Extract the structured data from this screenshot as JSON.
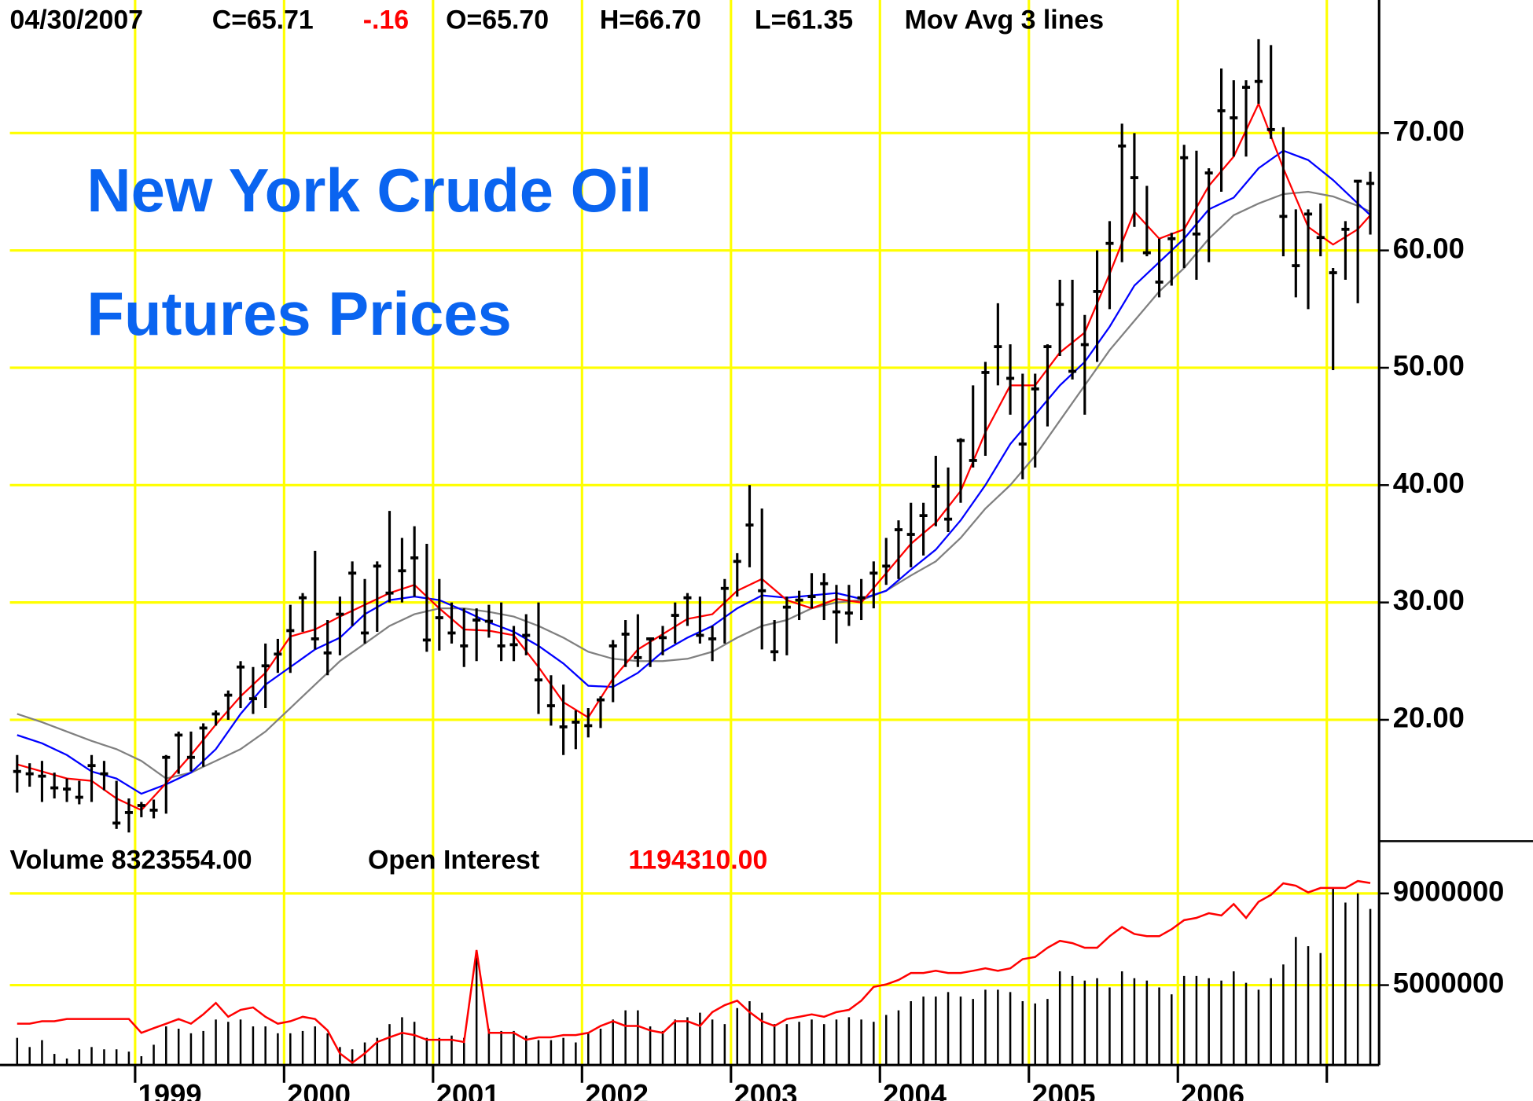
{
  "chart_data": {
    "type": "ohlc",
    "header": [
      {
        "text": "04/30/2007",
        "color": "#000000"
      },
      {
        "text": "C=65.71",
        "color": "#000000"
      },
      {
        "text": "-.16",
        "color": "#ff0000"
      },
      {
        "text": "O=65.70",
        "color": "#000000"
      },
      {
        "text": "H=66.70",
        "color": "#000000"
      },
      {
        "text": "L=61.35",
        "color": "#000000"
      },
      {
        "text": "Mov Avg 3 lines",
        "color": "#000000"
      }
    ],
    "title": "New York Crude Oil",
    "subtitle": "Futures Prices",
    "title_color": "#0a64f0",
    "color": "#000000",
    "x": [
      1998.208,
      1998.292,
      1998.375,
      1998.458,
      1998.542,
      1998.625,
      1998.708,
      1998.792,
      1998.875,
      1998.958,
      1999.042,
      1999.125,
      1999.208,
      1999.292,
      1999.375,
      1999.458,
      1999.542,
      1999.625,
      1999.708,
      1999.792,
      1999.875,
      1999.958,
      2000.042,
      2000.125,
      2000.208,
      2000.292,
      2000.375,
      2000.458,
      2000.542,
      2000.625,
      2000.708,
      2000.792,
      2000.875,
      2000.958,
      2001.042,
      2001.125,
      2001.208,
      2001.292,
      2001.375,
      2001.458,
      2001.542,
      2001.625,
      2001.708,
      2001.792,
      2001.875,
      2001.958,
      2002.042,
      2002.125,
      2002.208,
      2002.292,
      2002.375,
      2002.458,
      2002.542,
      2002.625,
      2002.708,
      2002.792,
      2002.875,
      2002.958,
      2003.042,
      2003.125,
      2003.208,
      2003.292,
      2003.375,
      2003.458,
      2003.542,
      2003.625,
      2003.708,
      2003.792,
      2003.875,
      2003.958,
      2004.042,
      2004.125,
      2004.208,
      2004.292,
      2004.375,
      2004.458,
      2004.542,
      2004.625,
      2004.708,
      2004.792,
      2004.875,
      2004.958,
      2005.042,
      2005.125,
      2005.208,
      2005.292,
      2005.375,
      2005.458,
      2005.542,
      2005.625,
      2005.708,
      2005.792,
      2005.875,
      2005.958,
      2006.042,
      2006.125,
      2006.208,
      2006.292,
      2006.375,
      2006.458,
      2006.542,
      2006.625,
      2006.708,
      2006.792,
      2006.875,
      2006.958,
      2007.042,
      2007.125,
      2007.208,
      2007.292
    ],
    "highs": [
      17.0,
      16.3,
      16.5,
      15.5,
      15.0,
      14.8,
      17.0,
      16.5,
      14.8,
      13.3,
      13.0,
      13.2,
      17.0,
      19.0,
      19.0,
      19.7,
      20.8,
      22.5,
      25.0,
      24.5,
      26.5,
      26.9,
      29.8,
      30.8,
      34.4,
      28.5,
      30.5,
      33.5,
      32.0,
      33.5,
      37.8,
      35.5,
      36.5,
      35.0,
      32.0,
      30.0,
      29.5,
      29.5,
      29.8,
      30.0,
      28.0,
      29.0,
      30.0,
      23.8,
      23.0,
      20.8,
      21.0,
      22.0,
      26.8,
      28.5,
      29.0,
      27.0,
      28.0,
      30.0,
      30.8,
      30.5,
      28.0,
      32.0,
      34.2,
      40.0,
      38.0,
      28.5,
      30.5,
      31.0,
      32.5,
      32.5,
      31.5,
      31.5,
      32.0,
      33.5,
      35.5,
      37.0,
      38.5,
      38.5,
      42.5,
      41.5,
      44.0,
      48.5,
      50.5,
      55.5,
      52.0,
      49.5,
      49.5,
      52.0,
      57.5,
      57.5,
      54.5,
      60.0,
      62.5,
      70.8,
      70.0,
      65.5,
      61.0,
      61.5,
      69.0,
      68.5,
      67.0,
      75.5,
      74.5,
      74.5,
      78.0,
      77.5,
      70.5,
      63.5,
      63.5,
      64.0,
      58.5,
      62.5,
      66.0,
      66.7
    ],
    "lows": [
      13.8,
      14.3,
      13.0,
      13.3,
      13.0,
      12.8,
      13.0,
      14.0,
      10.7,
      10.4,
      11.7,
      11.6,
      12.0,
      15.4,
      15.6,
      16.0,
      19.5,
      20.0,
      21.0,
      20.5,
      21.0,
      24.0,
      24.0,
      27.5,
      26.0,
      23.8,
      25.5,
      28.0,
      26.5,
      27.5,
      30.0,
      30.0,
      30.5,
      25.8,
      25.9,
      26.5,
      24.5,
      25.0,
      27.0,
      25.0,
      25.0,
      25.5,
      20.5,
      19.5,
      17.0,
      17.5,
      18.5,
      19.3,
      21.5,
      24.5,
      24.5,
      24.5,
      25.5,
      26.5,
      28.0,
      26.5,
      25.0,
      26.5,
      30.5,
      33.0,
      26.0,
      25.0,
      25.5,
      28.5,
      29.5,
      28.5,
      26.5,
      28.0,
      28.5,
      29.5,
      31.5,
      32.0,
      33.0,
      34.0,
      36.5,
      36.0,
      38.5,
      41.5,
      42.5,
      48.5,
      46.0,
      40.5,
      41.5,
      45.0,
      51.0,
      49.0,
      46.0,
      50.5,
      55.0,
      59.0,
      62.0,
      59.5,
      56.0,
      57.0,
      58.5,
      57.5,
      59.0,
      65.0,
      68.0,
      68.0,
      72.5,
      69.5,
      59.5,
      56.0,
      55.0,
      59.5,
      49.8,
      57.5,
      55.5,
      61.35
    ],
    "closes": [
      15.6,
      15.4,
      15.2,
      14.2,
      14.1,
      13.4,
      16.1,
      15.4,
      11.2,
      12.1,
      12.7,
      12.3,
      16.8,
      18.7,
      16.8,
      19.3,
      20.5,
      22.1,
      24.5,
      21.8,
      24.6,
      25.6,
      27.6,
      30.4,
      26.9,
      25.7,
      29.0,
      32.5,
      27.4,
      33.1,
      30.8,
      32.7,
      33.8,
      26.8,
      28.7,
      27.4,
      26.3,
      28.5,
      28.4,
      26.3,
      26.4,
      27.2,
      23.4,
      21.2,
      19.4,
      19.8,
      19.5,
      21.7,
      26.3,
      27.3,
      25.3,
      26.9,
      27.0,
      28.9,
      30.4,
      27.2,
      26.9,
      31.2,
      33.5,
      36.6,
      31.0,
      25.8,
      29.6,
      30.2,
      30.5,
      31.6,
      29.2,
      29.1,
      30.4,
      32.5,
      33.1,
      36.2,
      35.8,
      37.4,
      39.9,
      37.1,
      43.8,
      42.1,
      49.6,
      51.8,
      49.1,
      43.5,
      48.2,
      51.8,
      55.4,
      49.7,
      51.97,
      56.5,
      60.6,
      68.9,
      66.2,
      59.8,
      57.3,
      61.0,
      67.9,
      61.4,
      66.6,
      71.9,
      71.3,
      73.9,
      74.4,
      70.3,
      62.9,
      58.7,
      63.1,
      61.1,
      58.1,
      61.8,
      65.9,
      65.71
    ],
    "moving_averages": {
      "x": [
        1998.208,
        1998.375,
        1998.542,
        1998.708,
        1998.875,
        1999.042,
        1999.208,
        1999.375,
        1999.542,
        1999.708,
        1999.875,
        2000.042,
        2000.208,
        2000.375,
        2000.542,
        2000.708,
        2000.875,
        2001.042,
        2001.208,
        2001.375,
        2001.542,
        2001.708,
        2001.875,
        2002.042,
        2002.208,
        2002.375,
        2002.542,
        2002.708,
        2002.875,
        2003.042,
        2003.208,
        2003.375,
        2003.542,
        2003.708,
        2003.875,
        2004.042,
        2004.208,
        2004.375,
        2004.542,
        2004.708,
        2004.875,
        2005.042,
        2005.208,
        2005.375,
        2005.542,
        2005.708,
        2005.875,
        2006.042,
        2006.208,
        2006.375,
        2006.542,
        2006.708,
        2006.875,
        2007.042,
        2007.208,
        2007.292
      ],
      "series": [
        {
          "color": "#808080",
          "values": [
            20.5,
            19.8,
            19.0,
            18.2,
            17.5,
            16.5,
            15.0,
            15.5,
            16.5,
            17.5,
            19.0,
            21.0,
            23.0,
            25.0,
            26.5,
            28.0,
            29.0,
            29.5,
            29.5,
            29.2,
            28.8,
            28.0,
            27.0,
            25.8,
            25.2,
            25.0,
            25.0,
            25.2,
            25.8,
            27.0,
            28.0,
            28.5,
            29.5,
            30.0,
            30.2,
            31.0,
            32.3,
            33.5,
            35.5,
            38.0,
            40.0,
            42.5,
            45.5,
            48.5,
            51.5,
            54.0,
            56.5,
            58.5,
            61.0,
            63.0,
            64.0,
            64.8,
            65.0,
            64.6,
            63.8,
            63.3
          ]
        },
        {
          "color": "#0000ff",
          "values": [
            18.7,
            18.0,
            17.0,
            15.6,
            15.0,
            13.7,
            14.5,
            15.5,
            17.5,
            20.5,
            23.0,
            24.5,
            26.0,
            27.0,
            29.0,
            30.2,
            30.5,
            30.2,
            29.3,
            28.3,
            27.5,
            26.3,
            24.8,
            22.9,
            22.8,
            24.0,
            25.8,
            27.0,
            28.0,
            29.5,
            30.6,
            30.4,
            30.6,
            30.8,
            30.3,
            31.0,
            32.8,
            34.5,
            37.0,
            40.0,
            43.5,
            46.0,
            48.5,
            50.5,
            53.5,
            57.0,
            59.0,
            61.0,
            63.5,
            64.5,
            67.0,
            68.5,
            67.7,
            66.0,
            64.0,
            63.0
          ]
        },
        {
          "color": "#ff0000",
          "values": [
            16.2,
            15.6,
            15.0,
            14.8,
            13.3,
            12.3,
            14.6,
            17.0,
            19.6,
            22.0,
            24.0,
            27.1,
            27.7,
            28.8,
            29.8,
            30.8,
            31.5,
            29.5,
            27.7,
            27.6,
            27.2,
            24.5,
            21.5,
            20.2,
            23.5,
            26.0,
            27.3,
            28.6,
            29.0,
            31.0,
            32.0,
            30.2,
            29.5,
            30.3,
            30.0,
            32.5,
            35.0,
            36.8,
            39.5,
            44.5,
            48.5,
            48.5,
            51.3,
            53.0,
            58.0,
            63.3,
            61.0,
            61.8,
            65.5,
            68.0,
            72.5,
            67.0,
            62.0,
            60.5,
            61.8,
            63.0
          ]
        }
      ]
    },
    "xlim": [
      1998.093,
      2007.351
    ],
    "xticks": [
      1999,
      2000,
      2001,
      2002,
      2003,
      2004,
      2005,
      2006,
      {
        "value": 2007,
        "label": null
      }
    ],
    "ylim": [
      9.66,
      81.34
    ],
    "yticks": [
      {
        "value": 20,
        "label": "20.00"
      },
      {
        "value": 30,
        "label": "30.00"
      },
      {
        "value": 40,
        "label": "40.00"
      },
      {
        "value": 50,
        "label": "50.00"
      },
      {
        "value": 60,
        "label": "60.00"
      },
      {
        "value": 70,
        "label": "70.00"
      }
    ],
    "grid": true,
    "grid_color": "#ffff00",
    "volume_header": [
      {
        "text": "Volume  8323554.00",
        "color": "#000000"
      },
      {
        "text": "Open Interest",
        "color": "#000000"
      },
      {
        "text": "1194310.00",
        "color": "#ff0000"
      }
    ],
    "volume": {
      "color": "#000000",
      "values": [
        2700000,
        2300000,
        2600000,
        2000000,
        1800000,
        2200000,
        2300000,
        2200000,
        2200000,
        2100000,
        1900000,
        2400000,
        3200000,
        3100000,
        2900000,
        3000000,
        3500000,
        3400000,
        3500000,
        3200000,
        3200000,
        2900000,
        2900000,
        3000000,
        3200000,
        2900000,
        2300000,
        2200000,
        2500000,
        2700000,
        3300000,
        3600000,
        3400000,
        2700000,
        2700000,
        2800000,
        2700000,
        6200000,
        3100000,
        3000000,
        3000000,
        2800000,
        2600000,
        2600000,
        2700000,
        2500000,
        2900000,
        3100000,
        3500000,
        3900000,
        3900000,
        3200000,
        3000000,
        3500000,
        3600000,
        3800000,
        3500000,
        3300000,
        4000000,
        4300000,
        3800000,
        3300000,
        3300000,
        3400000,
        3500000,
        3300000,
        3500000,
        3600000,
        3500000,
        3400000,
        3700000,
        3900000,
        4300000,
        4500000,
        4500000,
        4700000,
        4500000,
        4400000,
        4800000,
        4800000,
        4700000,
        4300000,
        4200000,
        4400000,
        5600000,
        5400000,
        5200000,
        5300000,
        4900000,
        5600000,
        5300000,
        5200000,
        4900000,
        4600000,
        5400000,
        5400000,
        5300000,
        5200000,
        5600000,
        5100000,
        4800000,
        5300000,
        5900000,
        7100000,
        6700000,
        6400000,
        9200000,
        8600000,
        9000000,
        8323554
      ],
      "ylim": [
        1516000,
        11280000
      ],
      "yticks": [
        5000000,
        9000000
      ]
    },
    "open_interest": {
      "color": "#ff0000",
      "values": [
        503000,
        503000,
        515000,
        515000,
        526000,
        526000,
        526000,
        526000,
        526000,
        526000,
        458000,
        481000,
        503000,
        526000,
        503000,
        549000,
        605000,
        537000,
        571000,
        583000,
        537000,
        503000,
        515000,
        537000,
        526000,
        470000,
        357000,
        311000,
        357000,
        413000,
        436000,
        458000,
        447000,
        424000,
        424000,
        424000,
        413000,
        865000,
        458000,
        458000,
        458000,
        424000,
        436000,
        436000,
        447000,
        447000,
        458000,
        492000,
        515000,
        492000,
        492000,
        470000,
        458000,
        515000,
        515000,
        492000,
        560000,
        594000,
        616000,
        560000,
        515000,
        492000,
        526000,
        537000,
        549000,
        537000,
        560000,
        571000,
        616000,
        684000,
        696000,
        718000,
        752000,
        752000,
        763000,
        752000,
        752000,
        763000,
        775000,
        763000,
        775000,
        820000,
        831000,
        876000,
        910000,
        899000,
        876000,
        876000,
        933000,
        978000,
        944000,
        933000,
        933000,
        967000,
        1012000,
        1023000,
        1046000,
        1035000,
        1091000,
        1023000,
        1102000,
        1136000,
        1193000,
        1181000,
        1148000,
        1170000,
        1170000,
        1170000,
        1204000,
        1194310
      ],
      "y2lim": [
        300000,
        1400000
      ]
    }
  }
}
